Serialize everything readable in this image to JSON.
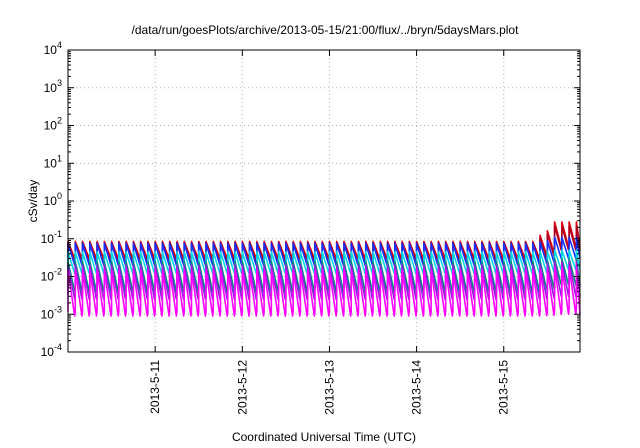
{
  "chart_data": {
    "type": "line",
    "title": "/data/run/goesPlots/archive/2013-05-15/21:00/flux/../bryn/5daysMars.plot",
    "xlabel": "Coordinated Universal Time (UTC)",
    "ylabel": "cSv/day",
    "x_range": [
      "2013-05-10T00:00",
      "2013-05-15T21:00"
    ],
    "x_tick_dates": [
      "2013-05-11",
      "2013-05-12",
      "2013-05-13",
      "2013-05-14",
      "2013-05-15"
    ],
    "x_tick_labels": [
      "2013-5-11",
      "2013-5-12",
      "2013-5-13",
      "2013-5-14",
      "2013-5-15"
    ],
    "y_scale": "log",
    "ylim": [
      0.0001,
      10000
    ],
    "y_tick_exponents": [
      -4,
      -3,
      -2,
      -1,
      0,
      1,
      2,
      3,
      4
    ],
    "grid": true,
    "legend": "none",
    "sawtooth_period_hours": 2,
    "colors": {
      "red": "#e8000b",
      "dark_red": "#b00020",
      "blue": "#1030ff",
      "cyan": "#00d8e8",
      "teal": "#009080",
      "purple": "#9020e0",
      "magenta": "#ff00ff"
    },
    "series": [
      {
        "color": "red",
        "peak": 0.085,
        "trough": 0.03,
        "late_peak": 0.28,
        "late_trough": 0.06
      },
      {
        "color": "dark_red",
        "peak": 0.08,
        "trough": 0.025,
        "late_peak": 0.22,
        "late_trough": 0.05
      },
      {
        "color": "blue",
        "peak": 0.075,
        "trough": 0.02,
        "late_peak": 0.11,
        "late_trough": 0.03
      },
      {
        "color": "cyan",
        "peak": 0.045,
        "trough": 0.012,
        "late_peak": 0.05,
        "late_trough": 0.015
      },
      {
        "color": "teal",
        "peak": 0.025,
        "trough": 0.004,
        "late_peak": 0.03,
        "late_trough": 0.006
      },
      {
        "color": "purple",
        "peak": 0.02,
        "trough": 0.0025,
        "late_peak": 0.025,
        "late_trough": 0.003
      },
      {
        "color": "magenta",
        "peak": 0.015,
        "trough": 0.0009,
        "late_peak": 0.018,
        "late_trough": 0.001
      }
    ]
  }
}
